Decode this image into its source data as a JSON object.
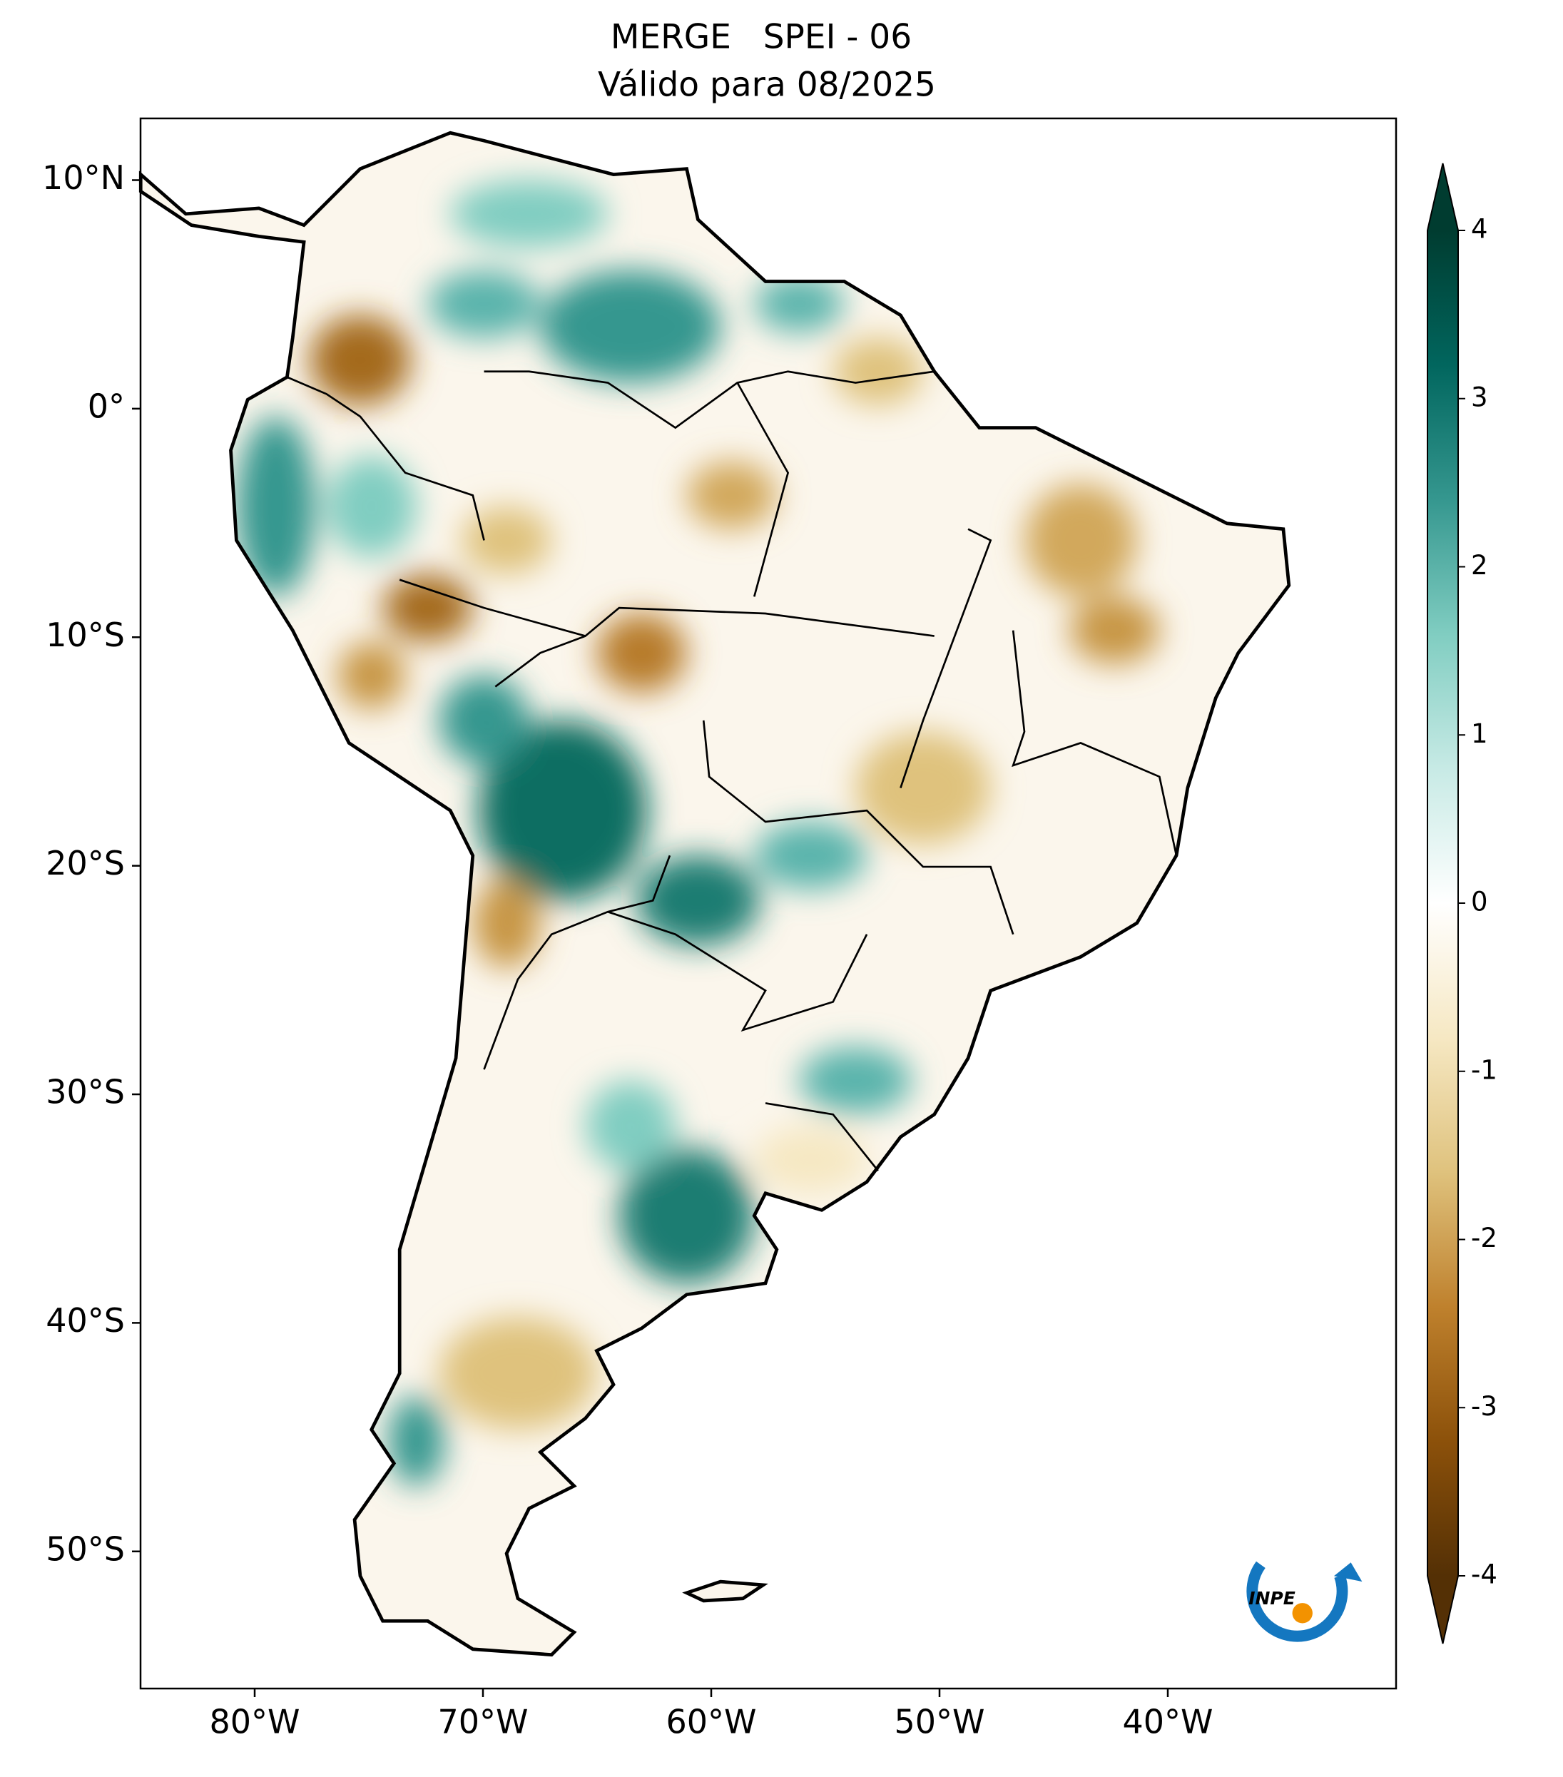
{
  "map": {
    "title": "MERGE   SPEI - 06",
    "subtitle": "Válido para 08/2025",
    "xlim": [
      -85,
      -30
    ],
    "ylim": [
      -56,
      12.7
    ],
    "xticks": [
      {
        "value": -80,
        "label": "80°W"
      },
      {
        "value": -70,
        "label": "70°W"
      },
      {
        "value": -60,
        "label": "60°W"
      },
      {
        "value": -50,
        "label": "50°W"
      },
      {
        "value": -40,
        "label": "40°W"
      }
    ],
    "yticks": [
      {
        "value": 10,
        "label": "10°N"
      },
      {
        "value": 0,
        "label": "0°"
      },
      {
        "value": -10,
        "label": "10°S"
      },
      {
        "value": -20,
        "label": "20°S"
      },
      {
        "value": -30,
        "label": "30°S"
      },
      {
        "value": -40,
        "label": "40°S"
      },
      {
        "value": -50,
        "label": "50°S"
      }
    ],
    "colorbar": {
      "range": [
        -4,
        4
      ],
      "ticks": [
        -4,
        -3,
        -2,
        -1,
        0,
        1,
        2,
        3,
        4
      ],
      "colors": [
        "#543005",
        "#8c510a",
        "#bf812d",
        "#dfc27d",
        "#f6e8c3",
        "#ffffff",
        "#c7eae5",
        "#80cdc1",
        "#35978f",
        "#01665e",
        "#003c30"
      ]
    },
    "logo": "INPE"
  }
}
